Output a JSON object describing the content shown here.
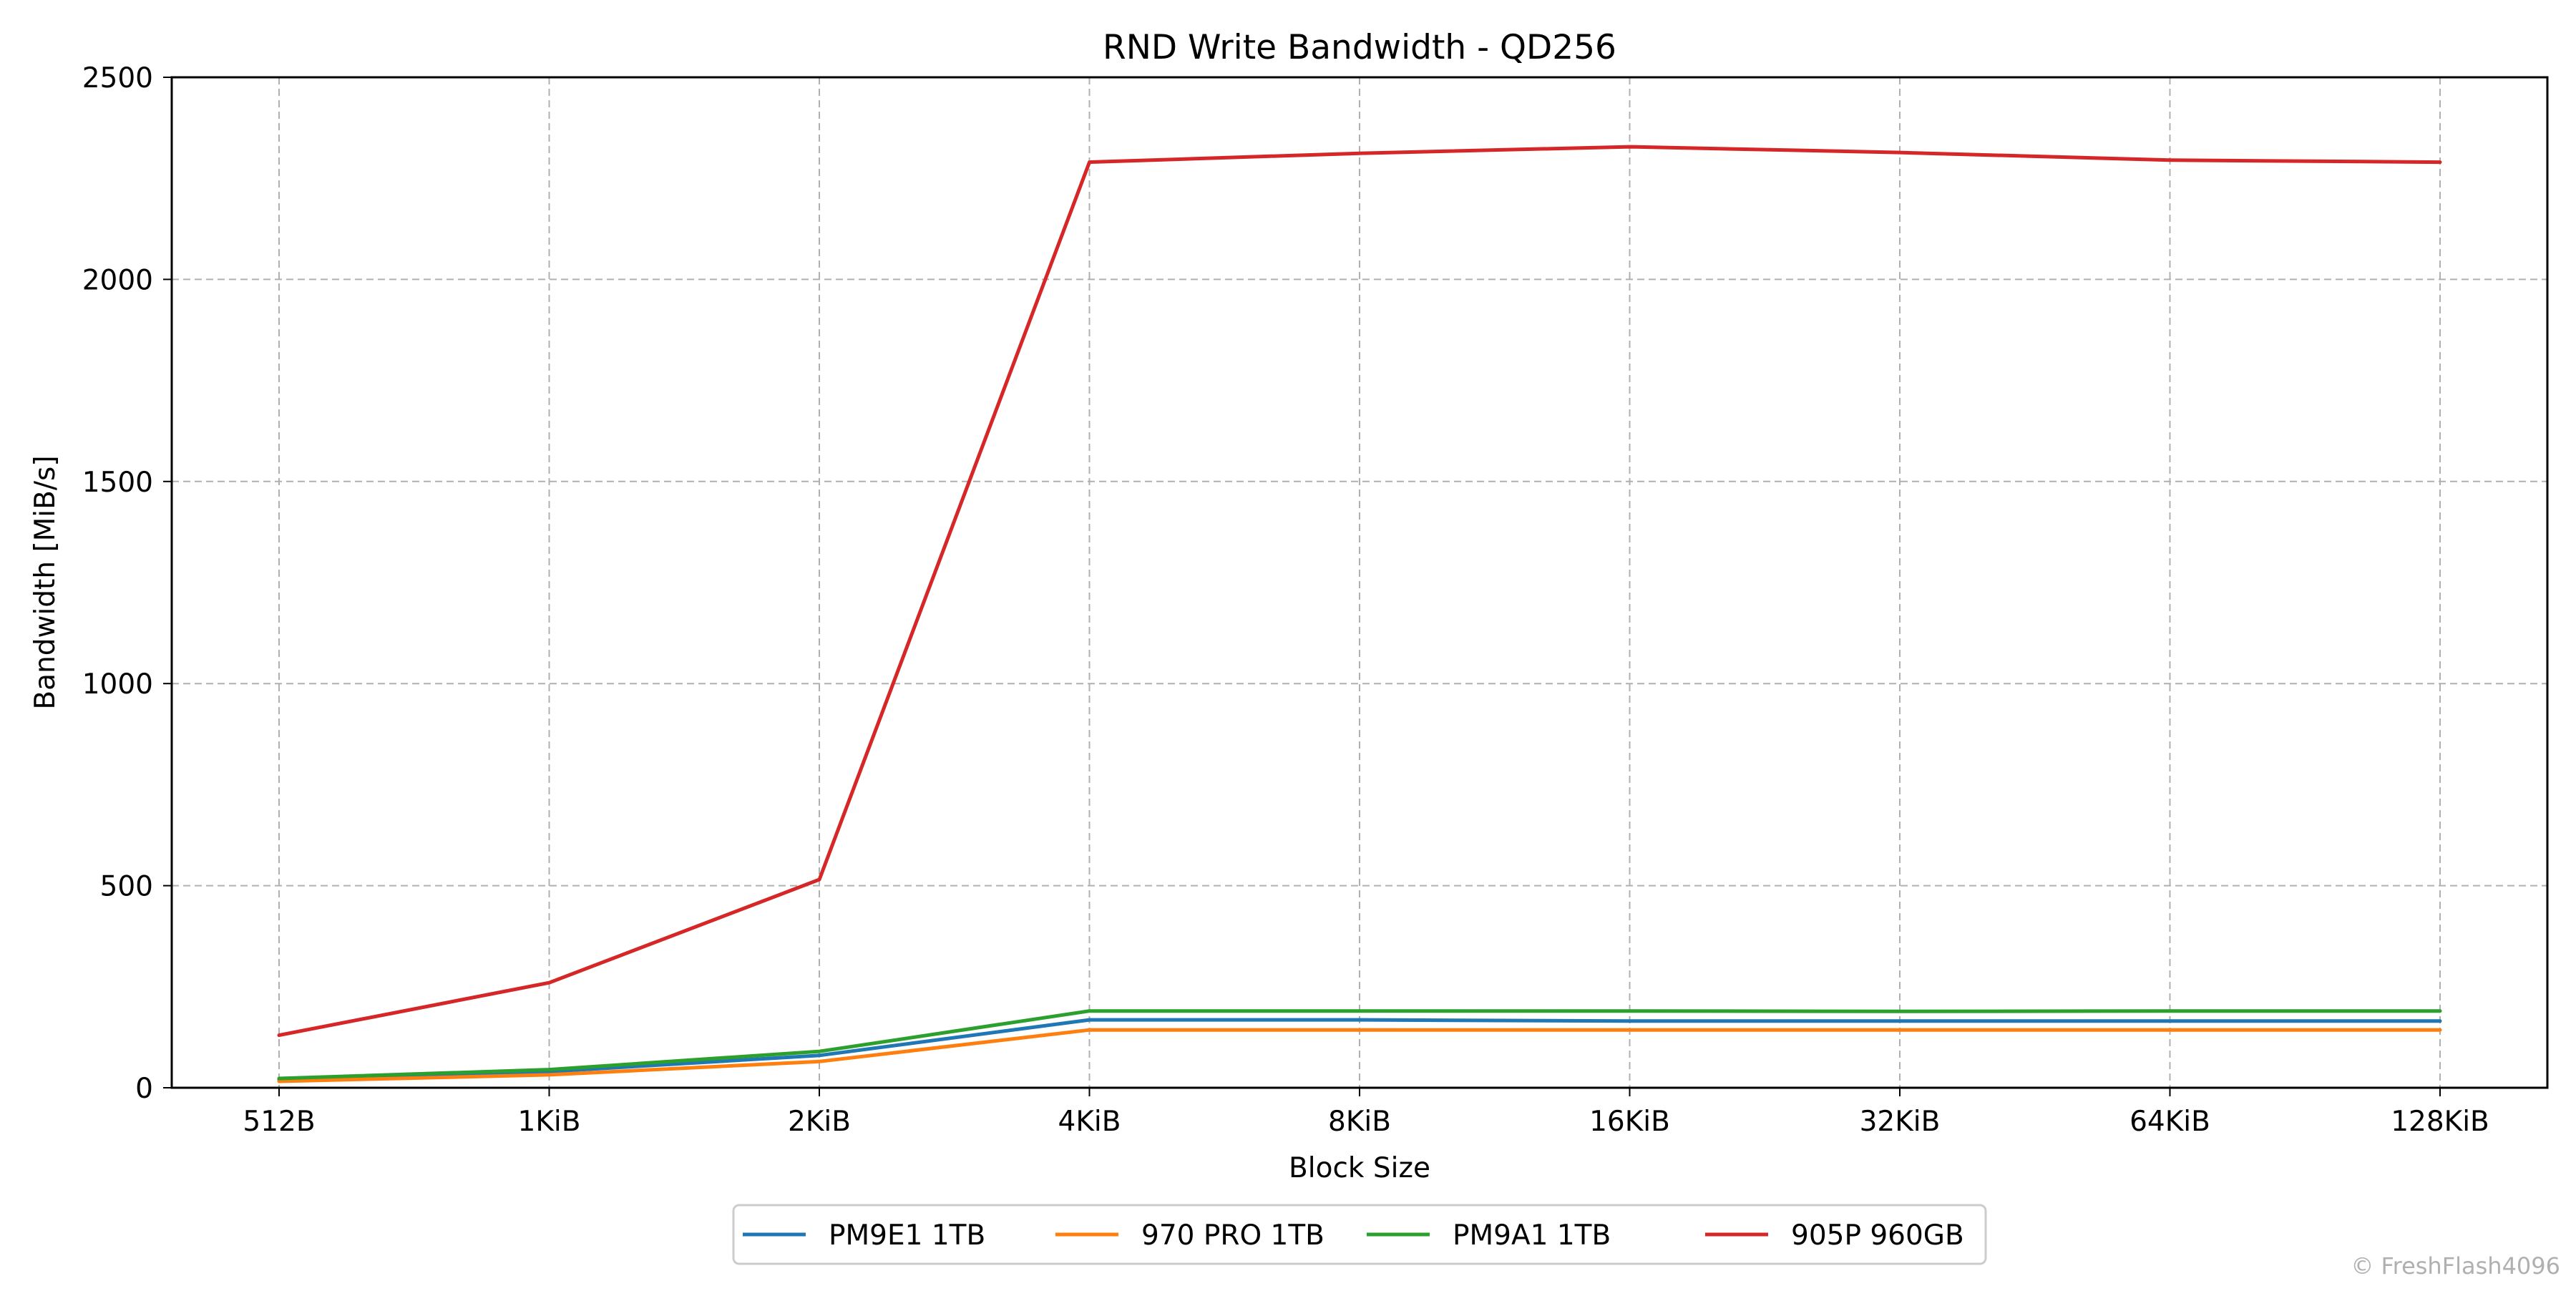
{
  "chart_data": {
    "type": "line",
    "title": "RND Write Bandwidth - QD256",
    "xlabel": "Block Size",
    "ylabel": "Bandwidth [MiB/s]",
    "categories": [
      "512B",
      "1KiB",
      "2KiB",
      "4KiB",
      "8KiB",
      "16KiB",
      "32KiB",
      "64KiB",
      "128KiB"
    ],
    "ylim": [
      0,
      2500
    ],
    "yticks": [
      "0",
      "500",
      "1000",
      "1500",
      "2000",
      "2500"
    ],
    "grid": true,
    "legend_position": "bottom-center",
    "series": [
      {
        "name": "PM9E1 1TB",
        "color": "#1f77b4",
        "values": [
          20,
          40,
          80,
          168,
          168,
          165,
          165,
          165,
          165
        ]
      },
      {
        "name": "970 PRO 1TB",
        "color": "#ff7f0e",
        "values": [
          16,
          32,
          65,
          143,
          143,
          143,
          143,
          143,
          143
        ]
      },
      {
        "name": "PM9A1 1TB",
        "color": "#2ca02c",
        "values": [
          23,
          45,
          90,
          190,
          190,
          190,
          189,
          190,
          190
        ]
      },
      {
        "name": "905P 960GB",
        "color": "#d62728",
        "values": [
          130,
          260,
          515,
          2290,
          2312,
          2328,
          2314,
          2295,
          2290
        ]
      }
    ]
  },
  "watermark": "© FreshFlash4096"
}
